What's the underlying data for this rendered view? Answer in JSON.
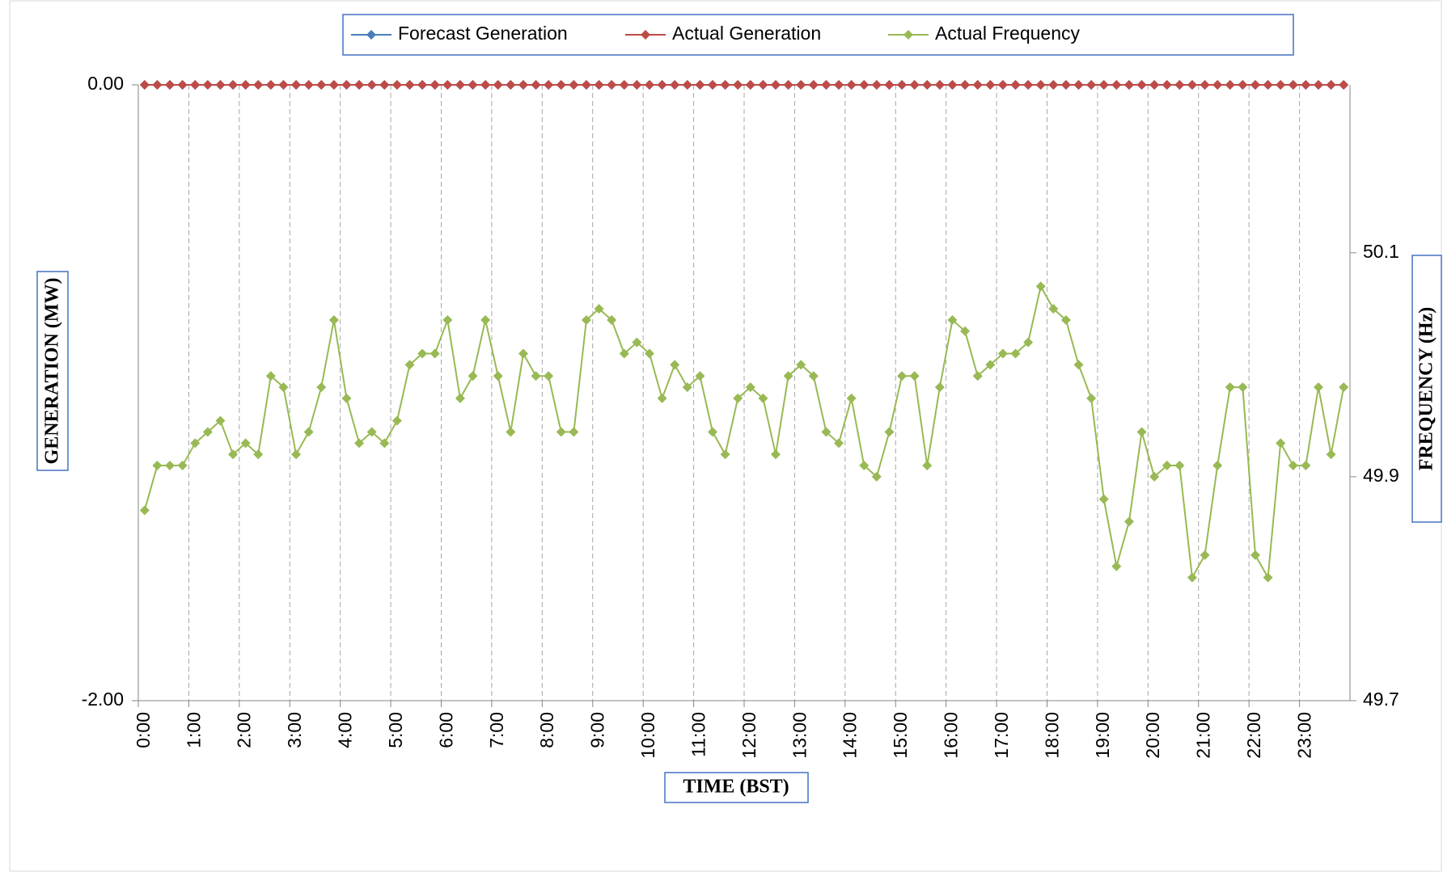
{
  "chart_data": {
    "type": "line",
    "categories": [
      "0:00",
      null,
      null,
      null,
      "1:00",
      null,
      null,
      null,
      "2:00",
      null,
      null,
      null,
      "3:00",
      null,
      null,
      null,
      "4:00",
      null,
      null,
      null,
      "5:00",
      null,
      null,
      null,
      "6:00",
      null,
      null,
      null,
      "7:00",
      null,
      null,
      null,
      "8:00",
      null,
      null,
      null,
      "9:00",
      null,
      null,
      null,
      "10:00",
      null,
      null,
      null,
      "11:00",
      null,
      null,
      null,
      "12:00",
      null,
      null,
      null,
      "13:00",
      null,
      null,
      null,
      "14:00",
      null,
      null,
      null,
      "15:00",
      null,
      null,
      null,
      "16:00",
      null,
      null,
      null,
      "17:00",
      null,
      null,
      null,
      "18:00",
      null,
      null,
      null,
      "19:00",
      null,
      null,
      null,
      "20:00",
      null,
      null,
      null,
      "21:00",
      null,
      null,
      null,
      "22:00",
      null,
      null,
      null,
      "23:00",
      null,
      null,
      null
    ],
    "series": [
      {
        "name": "Forecast Generation",
        "color": "#4a7ebb",
        "values": [
          0,
          0,
          0,
          0,
          0,
          0,
          0,
          0,
          0,
          0,
          0,
          0,
          0,
          0,
          0,
          0,
          0,
          0,
          0,
          0,
          0,
          0,
          0,
          0,
          0,
          0,
          0,
          0,
          0,
          0,
          0,
          0,
          0,
          0,
          0,
          0,
          0,
          0,
          0,
          0,
          0,
          0,
          0,
          0,
          0,
          0,
          0,
          0,
          0,
          0,
          0,
          0,
          0,
          0,
          0,
          0,
          0,
          0,
          0,
          0,
          0,
          0,
          0,
          0,
          0,
          0,
          0,
          0,
          0,
          0,
          0,
          0,
          0,
          0,
          0,
          0,
          0,
          0,
          0,
          0,
          0,
          0,
          0,
          0,
          0,
          0,
          0,
          0,
          0,
          0,
          0,
          0,
          0,
          0,
          0,
          0
        ]
      },
      {
        "name": "Actual Generation",
        "color": "#be4b48",
        "values": [
          0,
          0,
          0,
          0,
          0,
          0,
          0,
          0,
          0,
          0,
          0,
          0,
          0,
          0,
          0,
          0,
          0,
          0,
          0,
          0,
          0,
          0,
          0,
          0,
          0,
          0,
          0,
          0,
          0,
          0,
          0,
          0,
          0,
          0,
          0,
          0,
          0,
          0,
          0,
          0,
          0,
          0,
          0,
          0,
          0,
          0,
          0,
          0,
          0,
          0,
          0,
          0,
          0,
          0,
          0,
          0,
          0,
          0,
          0,
          0,
          0,
          0,
          0,
          0,
          0,
          0,
          0,
          0,
          0,
          0,
          0,
          0,
          0,
          0,
          0,
          0,
          0,
          0,
          0,
          0,
          0,
          0,
          0,
          0,
          0,
          0,
          0,
          0,
          0,
          0,
          0,
          0,
          0,
          0,
          0,
          0
        ]
      },
      {
        "name": "Actual Frequency",
        "color": "#98b954",
        "axis": "y2",
        "values": [
          49.87,
          49.91,
          49.91,
          49.91,
          49.93,
          49.94,
          49.95,
          49.92,
          49.93,
          49.92,
          49.99,
          49.98,
          49.92,
          49.94,
          49.98,
          50.04,
          49.97,
          49.93,
          49.94,
          49.93,
          49.95,
          50.0,
          50.01,
          50.01,
          50.04,
          49.97,
          49.99,
          50.04,
          49.99,
          49.94,
          50.01,
          49.99,
          49.99,
          49.94,
          49.94,
          50.04,
          50.05,
          50.04,
          50.01,
          50.02,
          50.01,
          49.97,
          50.0,
          49.98,
          49.99,
          49.94,
          49.92,
          49.97,
          49.98,
          49.97,
          49.92,
          49.99,
          50.0,
          49.99,
          49.94,
          49.93,
          49.97,
          49.91,
          49.9,
          49.94,
          49.99,
          49.99,
          49.91,
          49.98,
          50.04,
          50.03,
          49.99,
          50.0,
          50.01,
          50.01,
          50.02,
          50.07,
          50.05,
          50.04,
          50.0,
          49.97,
          49.88,
          49.82,
          49.86,
          49.94,
          49.9,
          49.91,
          49.91,
          49.81,
          49.83,
          49.91,
          49.98,
          49.98,
          49.83,
          49.81,
          49.93,
          49.91,
          49.91,
          49.98,
          49.92,
          49.98
        ]
      }
    ],
    "ylim": [
      -2,
      0
    ],
    "yticks": [
      {
        "value": -2,
        "label": "-2.00"
      },
      {
        "value": 0,
        "label": "0.00"
      }
    ],
    "y2lim": [
      49.7,
      50.25
    ],
    "y2ticks": [
      49.7,
      49.9,
      50.1
    ],
    "x_label": "TIME (BST)",
    "y_label": "GENERATION (MW)",
    "y2_label": "FREQUENCY (Hz)",
    "legend": "top",
    "grid": true
  }
}
